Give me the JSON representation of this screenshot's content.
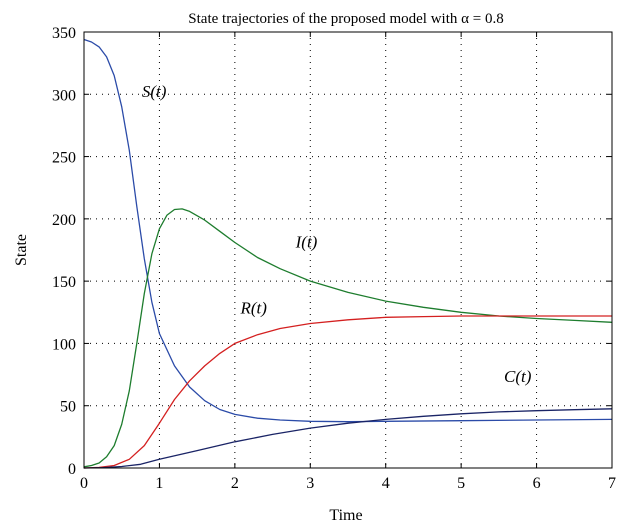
{
  "chart_data": {
    "type": "line",
    "title": "State trajectories of the proposed model with α = 0.8",
    "xlabel": "Time",
    "ylabel": "State",
    "xlim": [
      0,
      7
    ],
    "ylim": [
      0,
      350
    ],
    "xticks": [
      "0",
      "1",
      "2",
      "3",
      "4",
      "5",
      "6",
      "7"
    ],
    "yticks": [
      "0",
      "50",
      "100",
      "150",
      "200",
      "250",
      "300",
      "350"
    ],
    "grid": "dotted",
    "series": [
      {
        "name": "S(t)",
        "color": "#2b4ba8",
        "x": [
          0,
          0.1,
          0.2,
          0.3,
          0.4,
          0.5,
          0.6,
          0.7,
          0.8,
          0.9,
          1.0,
          1.2,
          1.4,
          1.6,
          1.8,
          2.0,
          2.3,
          2.6,
          3.0,
          3.5,
          4.0,
          5.0,
          6.0,
          7.0
        ],
        "values": [
          344,
          342,
          338,
          330,
          315,
          290,
          255,
          210,
          168,
          133,
          108,
          82,
          65,
          54,
          47,
          43,
          40,
          38.5,
          37.5,
          37.2,
          37.5,
          38,
          38.5,
          39
        ]
      },
      {
        "name": "I(t)",
        "color": "#1e7d2e",
        "x": [
          0,
          0.1,
          0.2,
          0.3,
          0.4,
          0.5,
          0.6,
          0.7,
          0.8,
          0.9,
          1.0,
          1.1,
          1.2,
          1.3,
          1.4,
          1.6,
          1.8,
          2.0,
          2.3,
          2.6,
          3.0,
          3.5,
          4.0,
          4.5,
          5.0,
          5.5,
          6.0,
          6.5,
          7.0
        ],
        "values": [
          1,
          2,
          4,
          9,
          18,
          35,
          62,
          100,
          140,
          172,
          192,
          203,
          207.5,
          208,
          206,
          199,
          190,
          181,
          169,
          160,
          150,
          141,
          134,
          129,
          125,
          122,
          120,
          118.5,
          117
        ]
      },
      {
        "name": "R(t)",
        "color": "#d42020",
        "x": [
          0,
          0.2,
          0.4,
          0.6,
          0.8,
          1.0,
          1.2,
          1.4,
          1.6,
          1.8,
          2.0,
          2.3,
          2.6,
          3.0,
          3.5,
          4.0,
          4.5,
          5.0,
          5.5,
          6.0,
          6.5,
          7.0
        ],
        "values": [
          0,
          0.5,
          2,
          7,
          18,
          36,
          55,
          70,
          82,
          92,
          100,
          107,
          112,
          116,
          119,
          121,
          121.5,
          122,
          122,
          122,
          122,
          122
        ]
      },
      {
        "name": "C(t)",
        "color": "#1a2466",
        "x": [
          0,
          0.25,
          0.5,
          0.75,
          1.0,
          1.5,
          2.0,
          2.5,
          3.0,
          3.5,
          4.0,
          4.5,
          5.0,
          5.5,
          6.0,
          6.5,
          7.0
        ],
        "values": [
          0,
          0.3,
          1.2,
          3,
          7,
          14,
          21,
          27,
          32,
          36,
          39,
          41.5,
          43.5,
          45,
          46,
          46.8,
          47.5
        ]
      }
    ],
    "annotations": [
      {
        "text": "S(t)",
        "x": 0.93,
        "y": 298
      },
      {
        "text": "I(t)",
        "x": 2.95,
        "y": 177
      },
      {
        "text": "R(t)",
        "x": 2.25,
        "y": 124
      },
      {
        "text": "C(t)",
        "x": 5.75,
        "y": 69
      }
    ]
  }
}
